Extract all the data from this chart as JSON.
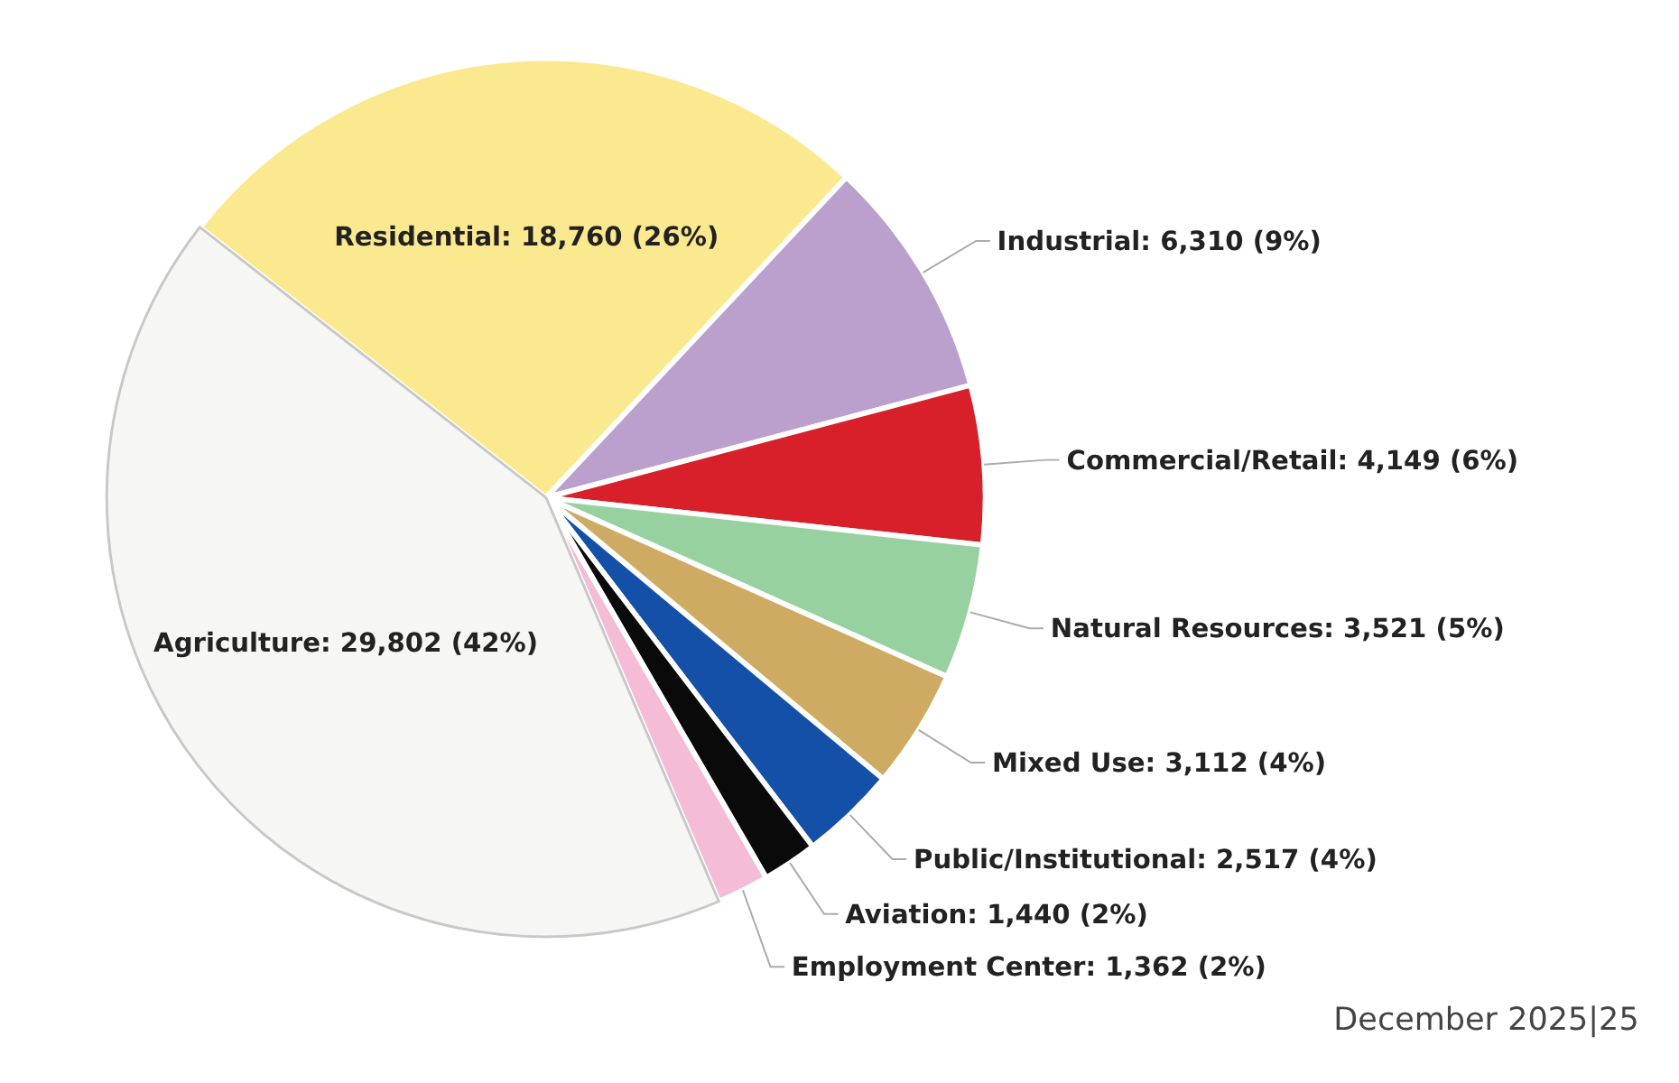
{
  "chart_data": {
    "type": "pie",
    "categories": [
      "Residential",
      "Industrial",
      "Commercial/Retail",
      "Natural Resources",
      "Mixed Use",
      "Public/Institutional",
      "Aviation",
      "Employment Center",
      "Agriculture"
    ],
    "values": [
      18760,
      6310,
      4149,
      3521,
      3112,
      2517,
      1440,
      1362,
      29802
    ],
    "value_labels": [
      "18,760 (26%)",
      "6,310 (9%)",
      "4,149 (6%)",
      "3,521 (5%)",
      "3,112 (4%)",
      "2,517 (4%)",
      "1,440 (2%)",
      "1,362 (2%)",
      "29,802 (42%)"
    ],
    "colors": [
      "#fbe98f",
      "#bb9fcc",
      "#d7202a",
      "#98d1a0",
      "#cfaa62",
      "#1550a8",
      "#0a0a0a",
      "#f5bcd8",
      "#f6f7f5"
    ],
    "annotations": [
      "December 2025|25"
    ]
  }
}
